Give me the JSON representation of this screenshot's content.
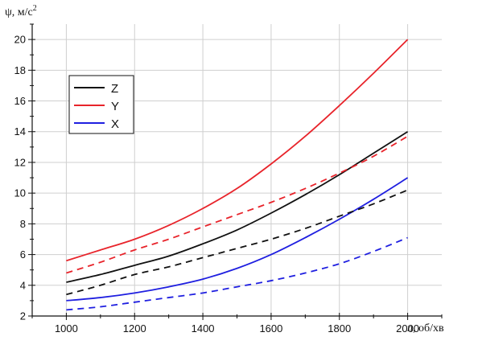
{
  "chart_data": {
    "type": "line",
    "xlabel": {
      "symbol": "n",
      "unit": "об/хв",
      "separator": ", "
    },
    "ylabel": {
      "symbol": "ψ",
      "unit": "м/с",
      "superscript": "2",
      "separator": ", "
    },
    "xlim": [
      900,
      2100
    ],
    "ylim": [
      2,
      21
    ],
    "xticks": [
      1000,
      1200,
      1400,
      1600,
      1800,
      2000
    ],
    "yticks": [
      2,
      4,
      6,
      8,
      10,
      12,
      14,
      16,
      18,
      20
    ],
    "grid": true,
    "legend": {
      "position": "upper-left",
      "entries": [
        "Z",
        "Y",
        "X"
      ]
    },
    "x": [
      1000,
      1100,
      1200,
      1300,
      1400,
      1500,
      1600,
      1700,
      1800,
      1900,
      2000
    ],
    "series": [
      {
        "name": "Z",
        "style": "solid",
        "color": "#111111",
        "values": [
          4.2,
          4.7,
          5.3,
          5.9,
          6.7,
          7.6,
          8.7,
          9.9,
          11.2,
          12.6,
          14.0
        ]
      },
      {
        "name": "Y",
        "style": "solid",
        "color": "#e8242b",
        "values": [
          5.6,
          6.3,
          7.0,
          7.9,
          9.0,
          10.3,
          11.9,
          13.7,
          15.7,
          17.8,
          20.0
        ]
      },
      {
        "name": "X",
        "style": "solid",
        "color": "#1f1fe0",
        "values": [
          3.0,
          3.2,
          3.5,
          3.9,
          4.4,
          5.1,
          6.0,
          7.1,
          8.3,
          9.6,
          11.0
        ]
      },
      {
        "style": "dashed",
        "color": "#e8242b",
        "values": [
          4.8,
          5.5,
          6.3,
          7.0,
          7.8,
          8.6,
          9.4,
          10.3,
          11.3,
          12.4,
          13.7
        ]
      },
      {
        "style": "dashed",
        "color": "#111111",
        "values": [
          3.4,
          4.0,
          4.7,
          5.2,
          5.8,
          6.4,
          7.0,
          7.7,
          8.5,
          9.3,
          10.2
        ]
      },
      {
        "style": "dashed",
        "color": "#1f1fe0",
        "values": [
          2.4,
          2.6,
          2.9,
          3.2,
          3.5,
          3.9,
          4.3,
          4.8,
          5.4,
          6.2,
          7.1
        ]
      }
    ]
  }
}
